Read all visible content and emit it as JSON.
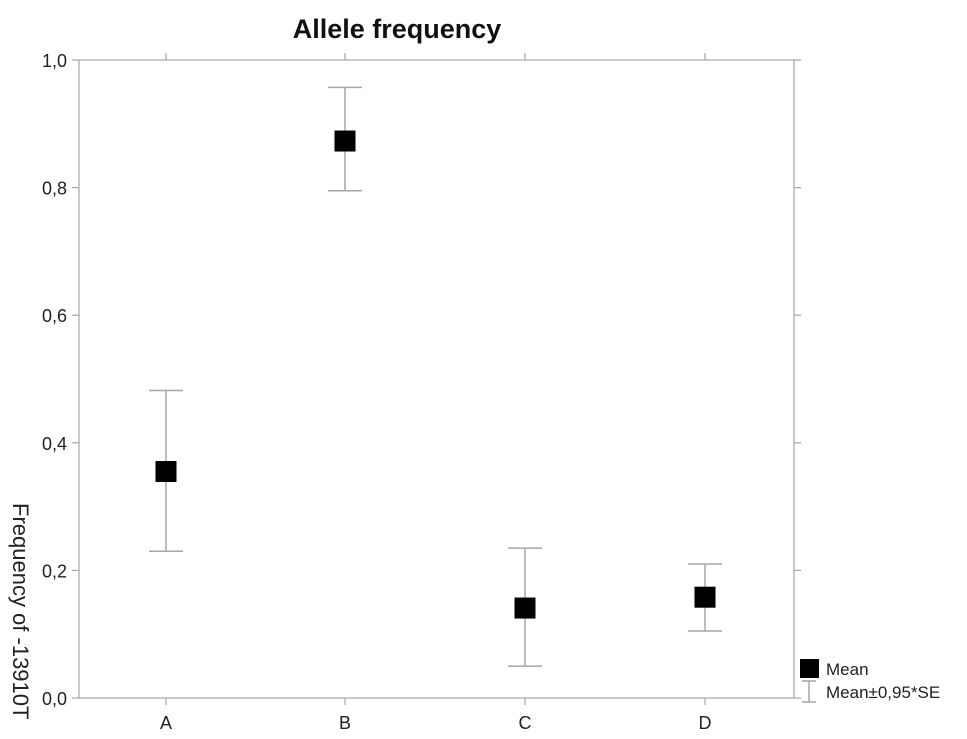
{
  "chart_data": {
    "type": "scatter",
    "title": "Allele frequency",
    "xlabel": "",
    "ylabel": "Frequency of -13910T",
    "categories": [
      "A",
      "B",
      "C",
      "D"
    ],
    "series": [
      {
        "name": "Mean",
        "values": [
          0.355,
          0.873,
          0.141,
          0.158
        ],
        "err_lower": [
          0.23,
          0.795,
          0.05,
          0.105
        ],
        "err_upper": [
          0.482,
          0.957,
          0.235,
          0.21
        ]
      }
    ],
    "ylim": [
      0.0,
      1.0
    ],
    "yticks": [
      "0,0",
      "0,2",
      "0,4",
      "0,6",
      "0,8",
      "1,0"
    ],
    "ytick_values": [
      0.0,
      0.2,
      0.4,
      0.6,
      0.8,
      1.0
    ],
    "legend": {
      "placement": "right",
      "mean_label": "Mean",
      "error_label": "Mean±0,95*SE"
    },
    "grid": false,
    "colors": {
      "marker": "#000000",
      "errorbar": "#a6a6a6",
      "axis": "#a6a6a6"
    }
  }
}
